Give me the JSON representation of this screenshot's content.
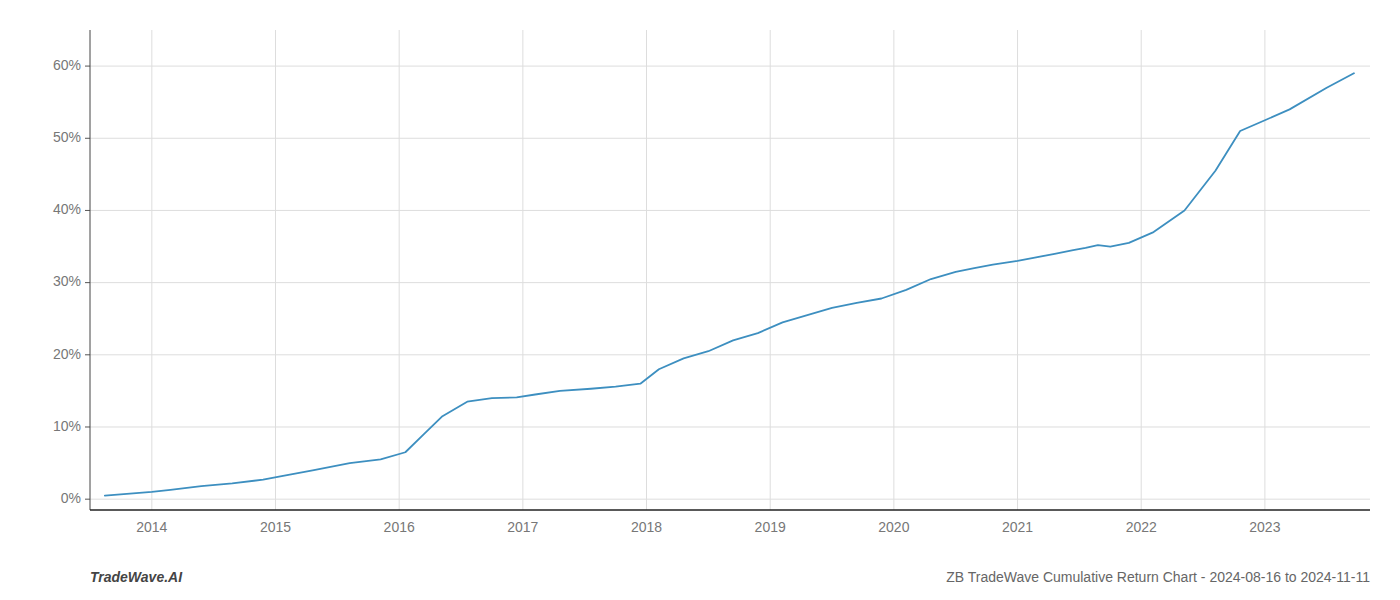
{
  "chart_data": {
    "type": "line",
    "x": [
      2013.62,
      2014.0,
      2014.15,
      2014.4,
      2014.65,
      2014.9,
      2015.05,
      2015.3,
      2015.6,
      2015.85,
      2016.05,
      2016.2,
      2016.35,
      2016.55,
      2016.75,
      2016.95,
      2017.1,
      2017.3,
      2017.55,
      2017.75,
      2017.95,
      2018.1,
      2018.3,
      2018.5,
      2018.7,
      2018.9,
      2019.1,
      2019.3,
      2019.5,
      2019.7,
      2019.9,
      2020.1,
      2020.3,
      2020.5,
      2020.65,
      2020.8,
      2021.0,
      2021.15,
      2021.3,
      2021.45,
      2021.55,
      2021.65,
      2021.75,
      2021.9,
      2022.1,
      2022.35,
      2022.6,
      2022.8,
      2023.0,
      2023.2,
      2023.5,
      2023.72
    ],
    "values": [
      0.5,
      1.0,
      1.3,
      1.8,
      2.2,
      2.7,
      3.2,
      4.0,
      5.0,
      5.5,
      6.5,
      9.0,
      11.5,
      13.5,
      14.0,
      14.1,
      14.5,
      15.0,
      15.3,
      15.6,
      16.0,
      18.0,
      19.5,
      20.5,
      22.0,
      23.0,
      24.5,
      25.5,
      26.5,
      27.2,
      27.8,
      29.0,
      30.5,
      31.5,
      32.0,
      32.5,
      33.0,
      33.5,
      34.0,
      34.5,
      34.8,
      35.2,
      35.0,
      35.5,
      37.0,
      40.0,
      45.5,
      51.0,
      52.5,
      54.0,
      57.0,
      59.0
    ],
    "color": "#3d8fc0",
    "xlim": [
      2013.5,
      2023.85
    ],
    "xticks": [
      2014,
      2015,
      2016,
      2017,
      2018,
      2019,
      2020,
      2021,
      2022,
      2023
    ],
    "ylim": [
      -1.5,
      65
    ],
    "yticks": [
      {
        "value": 0,
        "label": "0%"
      },
      {
        "value": 10,
        "label": "10%"
      },
      {
        "value": 20,
        "label": "20%"
      },
      {
        "value": 30,
        "label": "30%"
      },
      {
        "value": 40,
        "label": "40%"
      },
      {
        "value": 50,
        "label": "50%"
      },
      {
        "value": 60,
        "label": "60%"
      }
    ],
    "grid": true,
    "annotations": [
      "TradeWave.AI",
      "ZB TradeWave Cumulative Return Chart - 2024-08-16 to 2024-11-11"
    ]
  }
}
